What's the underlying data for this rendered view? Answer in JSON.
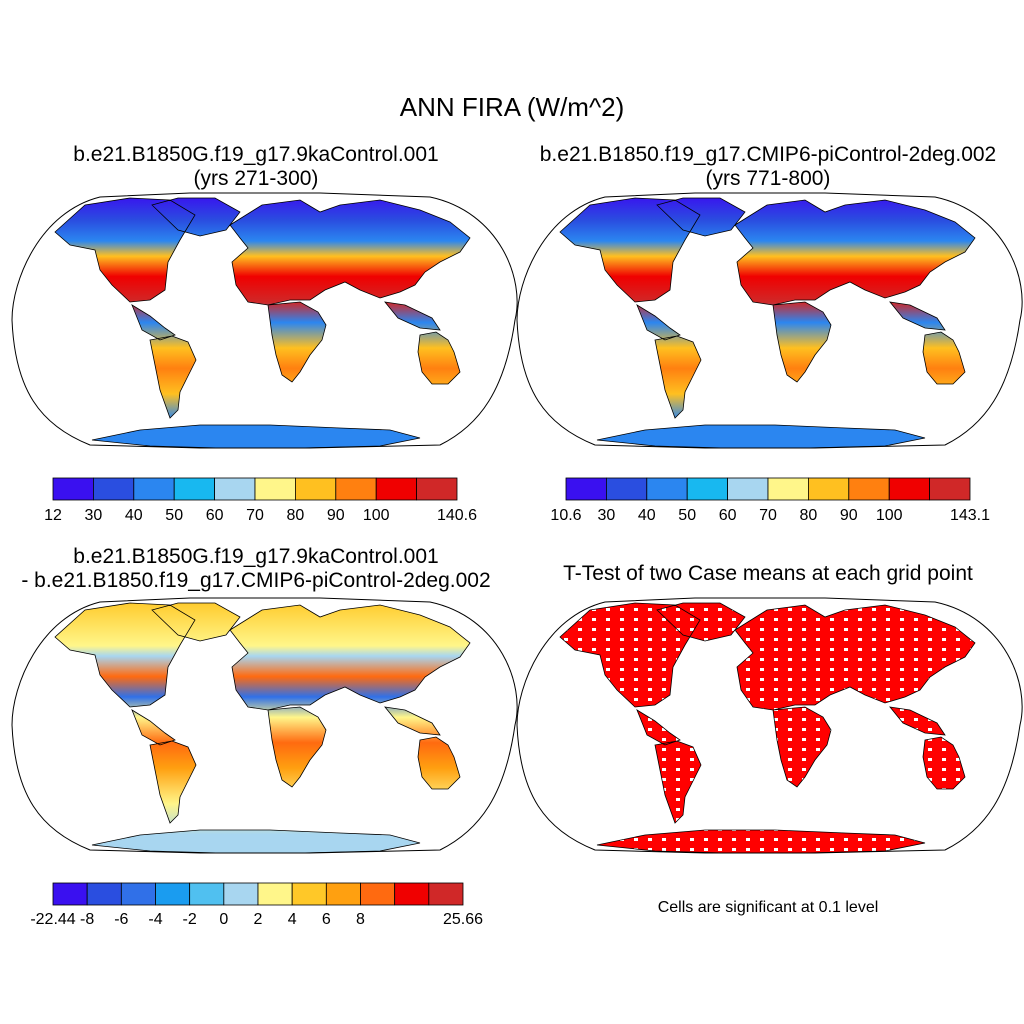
{
  "figure": {
    "title": "ANN FIRA (W/m^2)",
    "panels": [
      {
        "id": "case1",
        "title_line1": "b.e21.B1850G.f19_g17.9kaControl.001",
        "title_line2": "(yrs 271-300)"
      },
      {
        "id": "case2",
        "title_line1": "b.e21.B1850.f19_g17.CMIP6-piControl-2deg.002",
        "title_line2": "(yrs 771-800)"
      },
      {
        "id": "diff",
        "title_line1": "b.e21.B1850G.f19_g17.9kaControl.001",
        "title_line2": "- b.e21.B1850.f19_g17.CMIP6-piControl-2deg.002"
      },
      {
        "id": "ttest",
        "title_line1": "T-Test of two Case means at each grid point",
        "title_line2": ""
      }
    ],
    "significance_note": "Cells are significant at 0.1 level",
    "colorbars": [
      {
        "id": "case1",
        "colors": [
          "#3a10f0",
          "#2a4ee0",
          "#2b86f0",
          "#18b8f0",
          "#a8d6f0",
          "#fff68a",
          "#ffc020",
          "#ff8010",
          "#f00000",
          "#d02828"
        ],
        "tick_labels": [
          "12",
          "30",
          "40",
          "50",
          "60",
          "70",
          "80",
          "90",
          "100",
          "140.6"
        ]
      },
      {
        "id": "case2",
        "colors": [
          "#3a10f0",
          "#2a4ee0",
          "#2b86f0",
          "#18b8f0",
          "#a8d6f0",
          "#fff68a",
          "#ffc020",
          "#ff8010",
          "#f00000",
          "#d02828"
        ],
        "tick_labels": [
          "10.6",
          "30",
          "40",
          "50",
          "60",
          "70",
          "80",
          "90",
          "100",
          "143.1"
        ]
      },
      {
        "id": "diff",
        "colors": [
          "#3a10f0",
          "#2a4ee0",
          "#3070e8",
          "#1a9cf0",
          "#50c0f0",
          "#a8d6f0",
          "#fff68a",
          "#ffc828",
          "#ffa010",
          "#ff6a10",
          "#f00000",
          "#d02828"
        ],
        "tick_labels": [
          "-22.44",
          "-8",
          "-6",
          "-4",
          "-2",
          "0",
          "2",
          "4",
          "6",
          "8",
          "25.66"
        ]
      }
    ],
    "map_colors": {
      "ocean": "#ffffff",
      "significant": "#ff0000",
      "coast": "#000000"
    }
  }
}
